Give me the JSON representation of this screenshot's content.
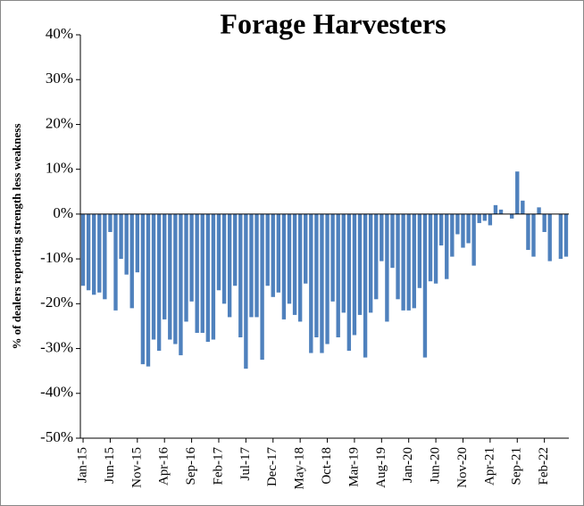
{
  "chart_data": {
    "type": "bar",
    "title": "Forage Harvesters",
    "ylabel": "% of dealers reporting  strength less weakness",
    "color": "#4f81bd",
    "categories": [
      "Jan-15",
      null,
      null,
      null,
      null,
      "Jun-15",
      null,
      null,
      null,
      null,
      "Nov-15",
      null,
      null,
      null,
      null,
      "Apr-16",
      null,
      null,
      null,
      null,
      "Sep-16",
      null,
      null,
      null,
      null,
      "Feb-17",
      null,
      null,
      null,
      null,
      "Jul-17",
      null,
      null,
      null,
      null,
      "Dec-17",
      null,
      null,
      null,
      null,
      "May-18",
      null,
      null,
      null,
      null,
      "Oct-18",
      null,
      null,
      null,
      null,
      "Mar-19",
      null,
      null,
      null,
      null,
      "Aug-19",
      null,
      null,
      null,
      null,
      "Jan-20",
      null,
      null,
      null,
      null,
      "Jun-20",
      null,
      null,
      null,
      null,
      "Nov-20",
      null,
      null,
      null,
      null,
      "Apr-21",
      null,
      null,
      null,
      null,
      "Sep-21",
      null,
      null,
      null,
      null,
      "Feb-22",
      null,
      null,
      null,
      null
    ],
    "values": [
      -16,
      -17,
      -18,
      -17.5,
      -19,
      -4,
      -21.5,
      -10,
      -13.5,
      -21,
      -13,
      -33.5,
      -34,
      -28,
      -30.5,
      -23.5,
      -28,
      -29,
      -31.5,
      -24,
      -19.5,
      -26.5,
      -26.5,
      -28.5,
      -28,
      -17,
      -20,
      -23,
      -16,
      -27.5,
      -34.5,
      -23,
      -23,
      -32.5,
      -16,
      -18.5,
      -17.5,
      -23.5,
      -20,
      -22.5,
      -24,
      -15.5,
      -31,
      -27.5,
      -31,
      -29,
      -19.5,
      -27.5,
      -22,
      -30.5,
      -27,
      -22.5,
      -32,
      -22,
      -19,
      -10.5,
      -24,
      -12,
      -19,
      -21.5,
      -21.5,
      -21,
      -16.5,
      -32,
      -15,
      -15.5,
      -7,
      -14.5,
      -9.5,
      -4.5,
      -7.5,
      -6.5,
      -11.5,
      -2,
      -1.5,
      -2.5,
      2,
      1,
      null,
      -1,
      9.5,
      3,
      -8,
      -9.5,
      1.5,
      -4,
      -10.5,
      null,
      -10,
      -9.5
    ],
    "ylim": [
      -50,
      40
    ],
    "yticks": [
      {
        "value": -50,
        "label": "-50%"
      },
      {
        "value": -40,
        "label": "-40%"
      },
      {
        "value": -30,
        "label": "-30%"
      },
      {
        "value": -20,
        "label": "-20%"
      },
      {
        "value": -10,
        "label": "-10%"
      },
      {
        "value": 0,
        "label": "0%"
      },
      {
        "value": 10,
        "label": "10%"
      },
      {
        "value": 20,
        "label": "20%"
      },
      {
        "value": 30,
        "label": "30%"
      },
      {
        "value": 40,
        "label": "40%"
      }
    ],
    "grid": false
  }
}
